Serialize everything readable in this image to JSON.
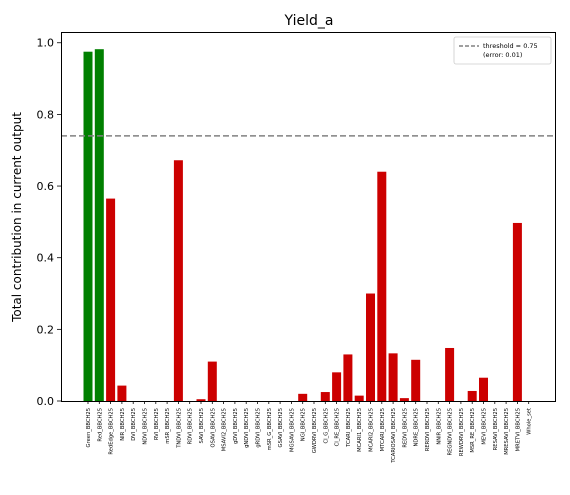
{
  "chart_data": {
    "type": "bar",
    "title": "Yield_a",
    "xlabel": "",
    "ylabel": "Total contribution in current output",
    "ylim": [
      0,
      1.03
    ],
    "yticks": [
      0.0,
      0.2,
      0.4,
      0.6,
      0.8,
      1.0
    ],
    "grid": false,
    "legend_position": "top-right",
    "threshold": {
      "value": 0.74,
      "label": "threshold = 0.75",
      "sublabel": "(error: 0.01)",
      "color": "#808080"
    },
    "colors": {
      "above": "#008000",
      "below": "#cc0000"
    },
    "categories": [
      "Green_BBCH25",
      "Red_BBCH25",
      "RedEdge_BBCH25",
      "NIR_BBCH25",
      "DVI_BBCH25",
      "NDVI_BBCH25",
      "RVI_BBCH25",
      "mSR_BBCH25",
      "TNDVI_BBCH25",
      "RDVI_BBCH25",
      "SAVI_BBCH25",
      "OSAVI_BBCH25",
      "MSAVI2_BBCH25",
      "gDVI_BBCH25",
      "gNDVI_BBCH25",
      "gRDVI_BBCH25",
      "mSR_G_BBCH25",
      "GSAVI_BBCH25",
      "MGSAVI_BBCH25",
      "NGI_BBCH25",
      "GWDRVI_BBCH25",
      "CI_G_BBCH25",
      "CI_RE_BBCH25",
      "TCARI_BBCH25",
      "MCARI1_BBCH25",
      "MCARI2_BBCH25",
      "MTCARI_BBCH25",
      "TCARIOSAVI_BBCH25",
      "REDVI_BBCH25",
      "NDRE_BBCH25",
      "RERDVI_BBCH25",
      "NNIR_BBCH25",
      "REGNDVI_BBCH25",
      "REWDRVI_BBCH25",
      "MSR_RE_BBCH25",
      "MEVI_BBCH25",
      "RESAVI_BBCH25",
      "MRESAVI_BBCH25",
      "MRETVI_BBCH25",
      "Whole_set"
    ],
    "values": [
      0.975,
      0.982,
      0.565,
      0.043,
      0,
      0,
      0,
      0,
      0.672,
      0,
      0.005,
      0.11,
      0,
      0,
      0,
      0,
      0,
      0,
      0,
      0.02,
      0,
      0.025,
      0.08,
      0.13,
      0.015,
      0.3,
      0.64,
      0.133,
      0.008,
      0.115,
      0,
      0,
      0.148,
      0,
      0.028,
      0.065,
      0,
      0,
      0.497,
      0
    ],
    "bar_groups": [
      "above",
      "above",
      "below",
      "below",
      "below",
      "below",
      "below",
      "below",
      "below",
      "below",
      "below",
      "below",
      "below",
      "below",
      "below",
      "below",
      "below",
      "below",
      "below",
      "below",
      "below",
      "below",
      "below",
      "below",
      "below",
      "below",
      "below",
      "below",
      "below",
      "below",
      "below",
      "below",
      "below",
      "below",
      "below",
      "below",
      "below",
      "below",
      "below",
      "below"
    ]
  }
}
